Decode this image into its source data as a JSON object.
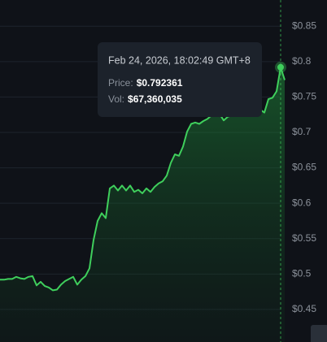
{
  "chart_data": {
    "type": "line",
    "categories": [
      null,
      null,
      null,
      null,
      null,
      null,
      null,
      null,
      null,
      null,
      null,
      null,
      null,
      null,
      null,
      null,
      null,
      null,
      null,
      null,
      null,
      null,
      null,
      null,
      null,
      null,
      null,
      null,
      null,
      null,
      null,
      null,
      null,
      null,
      null,
      null,
      null,
      null,
      null,
      null,
      null,
      null,
      null,
      null,
      null,
      null,
      null,
      null,
      null,
      null,
      null,
      null,
      null,
      null,
      null,
      null,
      null,
      null,
      null,
      null,
      null,
      null,
      null,
      null,
      null,
      null,
      null,
      null,
      null,
      null,
      null
    ],
    "series": [
      {
        "name": "Price",
        "color": "#3fcf5c",
        "values": [
          0.492,
          0.492,
          0.493,
          0.493,
          0.496,
          0.494,
          0.493,
          0.496,
          0.497,
          0.484,
          0.489,
          0.483,
          0.481,
          0.477,
          0.478,
          0.485,
          0.49,
          0.493,
          0.496,
          0.485,
          0.492,
          0.497,
          0.508,
          0.548,
          0.575,
          0.586,
          0.579,
          0.621,
          0.625,
          0.618,
          0.625,
          0.618,
          0.625,
          0.616,
          0.619,
          0.614,
          0.621,
          0.616,
          0.623,
          0.628,
          0.631,
          0.639,
          0.657,
          0.669,
          0.667,
          0.68,
          0.701,
          0.712,
          0.714,
          0.712,
          0.716,
          0.719,
          0.724,
          0.724,
          0.726,
          0.717,
          0.722,
          0.724,
          0.724,
          0.725,
          0.724,
          0.726,
          0.727,
          0.725,
          0.732,
          0.728,
          0.747,
          0.749,
          0.758,
          0.792,
          0.774
        ]
      }
    ],
    "ylim": [
      0.404,
      0.887
    ],
    "yticks": [
      {
        "value": 0.85,
        "label": "$0.85"
      },
      {
        "value": 0.8,
        "label": "$0.8"
      },
      {
        "value": 0.75,
        "label": "$0.75"
      },
      {
        "value": 0.7,
        "label": "$0.7"
      },
      {
        "value": 0.65,
        "label": "$0.65"
      },
      {
        "value": 0.6,
        "label": "$0.6"
      },
      {
        "value": 0.55,
        "label": "$0.55"
      },
      {
        "value": 0.5,
        "label": "$0.5"
      },
      {
        "value": 0.45,
        "label": "$0.45"
      }
    ],
    "grid": true,
    "tooltip": {
      "date": "Feb 24, 2026, 18:02:49 GMT+8",
      "price_label": "Price:",
      "price": "$0.792361",
      "vol_label": "Vol:",
      "vol": "$67,360,035"
    }
  }
}
